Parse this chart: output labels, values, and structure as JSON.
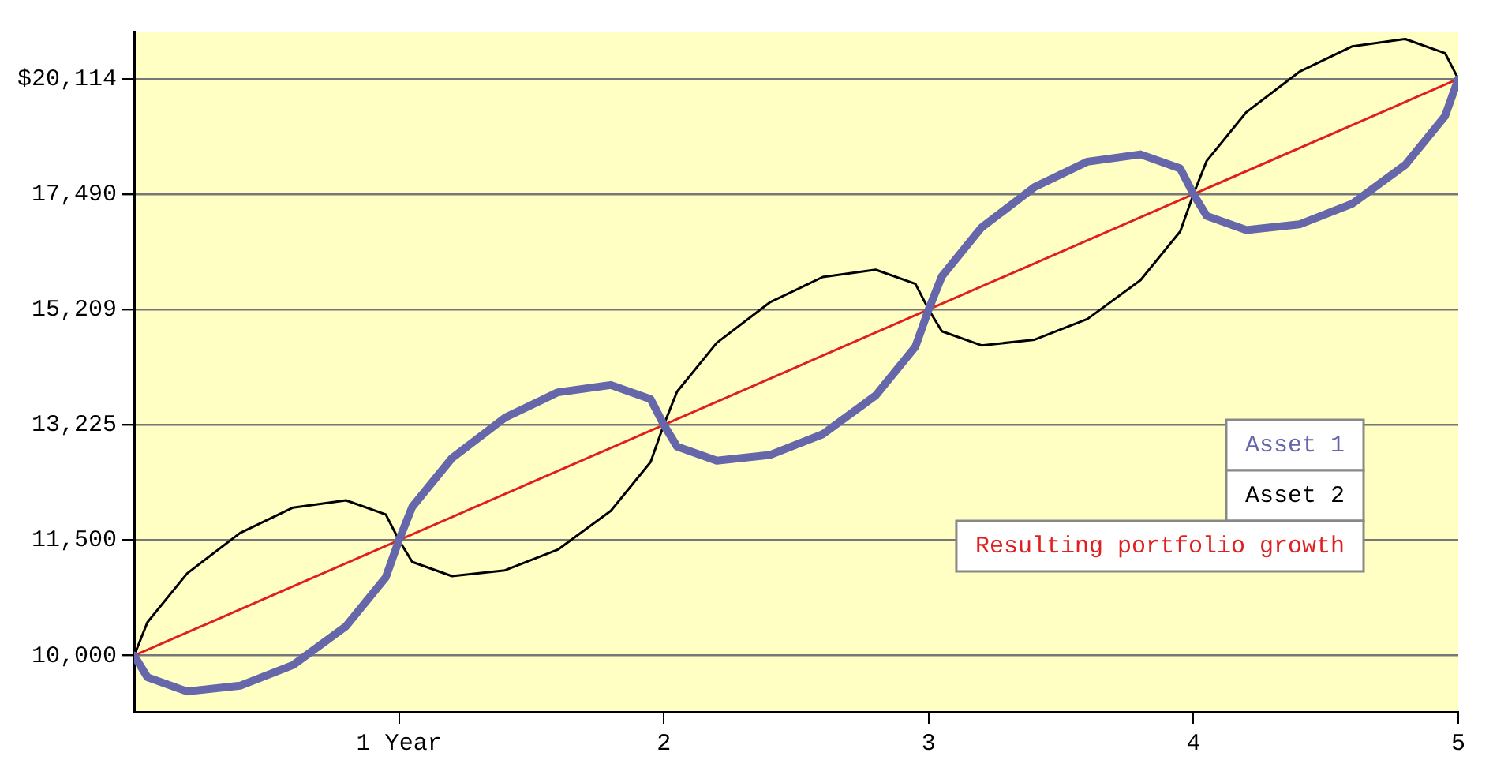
{
  "chart_data": {
    "type": "line",
    "log": "y",
    "grid": "y",
    "legend": "bottom right",
    "marker": "none",
    "line_style": "solid",
    "xlim": [
      0,
      5
    ],
    "xticks": [
      {
        "value": 1,
        "label": "1 Year"
      },
      2,
      3,
      4,
      5
    ],
    "ylim": [
      9340,
      21300
    ],
    "yticks": [
      {
        "value": 10000,
        "label": "10,000"
      },
      {
        "value": 11500,
        "label": "11,500"
      },
      {
        "value": 13225,
        "label": "13,225"
      },
      {
        "value": 15209,
        "label": "15,209"
      },
      {
        "value": 17490,
        "label": "17,490"
      },
      {
        "value": 20114,
        "label": "$20,114"
      }
    ],
    "series": [
      {
        "name": "Asset 1",
        "color": "#6666aa",
        "x": [
          0,
          0.05,
          0.2,
          0.4,
          0.6,
          0.8,
          0.95,
          1,
          1.05,
          1.2,
          1.4,
          1.6,
          1.8,
          1.95,
          2,
          2.05,
          2.2,
          2.4,
          2.6,
          2.8,
          2.95,
          3,
          3.05,
          3.2,
          3.4,
          3.6,
          3.8,
          3.95,
          4,
          4.05,
          4.2,
          4.4,
          4.6,
          4.8,
          4.95,
          5
        ],
        "values": [
          10000,
          9740,
          9574,
          9641,
          9886,
          10362,
          10993,
          11500,
          11974,
          12702,
          13339,
          13757,
          13879,
          13644,
          13225,
          12881,
          12662,
          12750,
          13075,
          13704,
          14538,
          15209,
          15834,
          16799,
          17641,
          18193,
          18355,
          18044,
          17490,
          17035,
          16745,
          16862,
          17291,
          18123,
          19227,
          20114
        ]
      },
      {
        "name": "Asset 2",
        "color": "#000000",
        "x": [
          0,
          0.05,
          0.2,
          0.4,
          0.6,
          0.8,
          0.95,
          1,
          1.05,
          1.2,
          1.4,
          1.6,
          1.8,
          1.95,
          2,
          2.05,
          2.2,
          2.4,
          2.6,
          2.8,
          2.95,
          3,
          3.05,
          3.2,
          3.4,
          3.6,
          3.8,
          3.95,
          4,
          4.05,
          4.2,
          4.4,
          4.6,
          4.8,
          4.95,
          5
        ],
        "values": [
          10000,
          10411,
          11046,
          11600,
          11963,
          12069,
          11864,
          11500,
          11201,
          11010,
          11087,
          11369,
          11916,
          12642,
          13225,
          13769,
          14608,
          15340,
          15820,
          15960,
          15690,
          15209,
          14813,
          14561,
          14663,
          15036,
          15760,
          16718,
          17490,
          18210,
          19319,
          20287,
          20922,
          21108,
          20751,
          20114
        ]
      },
      {
        "name": "Resulting portfolio growth",
        "color": "#e02020",
        "x": [
          0,
          5
        ],
        "values": [
          10000,
          20114
        ]
      }
    ]
  }
}
